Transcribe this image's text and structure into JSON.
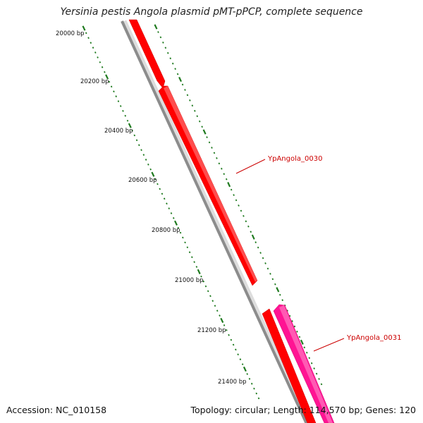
{
  "title": "Yersinia pestis Angola plasmid pMT-pPCP, complete sequence",
  "footer": {
    "accession": "Accession: NC_010158",
    "summary": "Topology: circular; Length: 114,570 bp; Genes: 120"
  },
  "colors": {
    "backbone": "#8c8c8c",
    "forward_gene": "#ff0000",
    "reverse_gene": "#ff1493",
    "tick": "#1f7a1f",
    "gene_label": "#cc0000"
  },
  "position_ticks": [
    {
      "label": "20000 bp"
    },
    {
      "label": "20200 bp"
    },
    {
      "label": "20400 bp"
    },
    {
      "label": "20600 bp"
    },
    {
      "label": "20800 bp"
    },
    {
      "label": "21000 bp"
    },
    {
      "label": "21200 bp"
    },
    {
      "label": "21400 bp"
    }
  ],
  "genes": [
    {
      "name": "",
      "strand": "forward"
    },
    {
      "name": "YpAngola_0030",
      "strand": "forward"
    },
    {
      "name": "",
      "strand": "forward"
    },
    {
      "name": "YpAngola_0031",
      "strand": "reverse"
    }
  ]
}
